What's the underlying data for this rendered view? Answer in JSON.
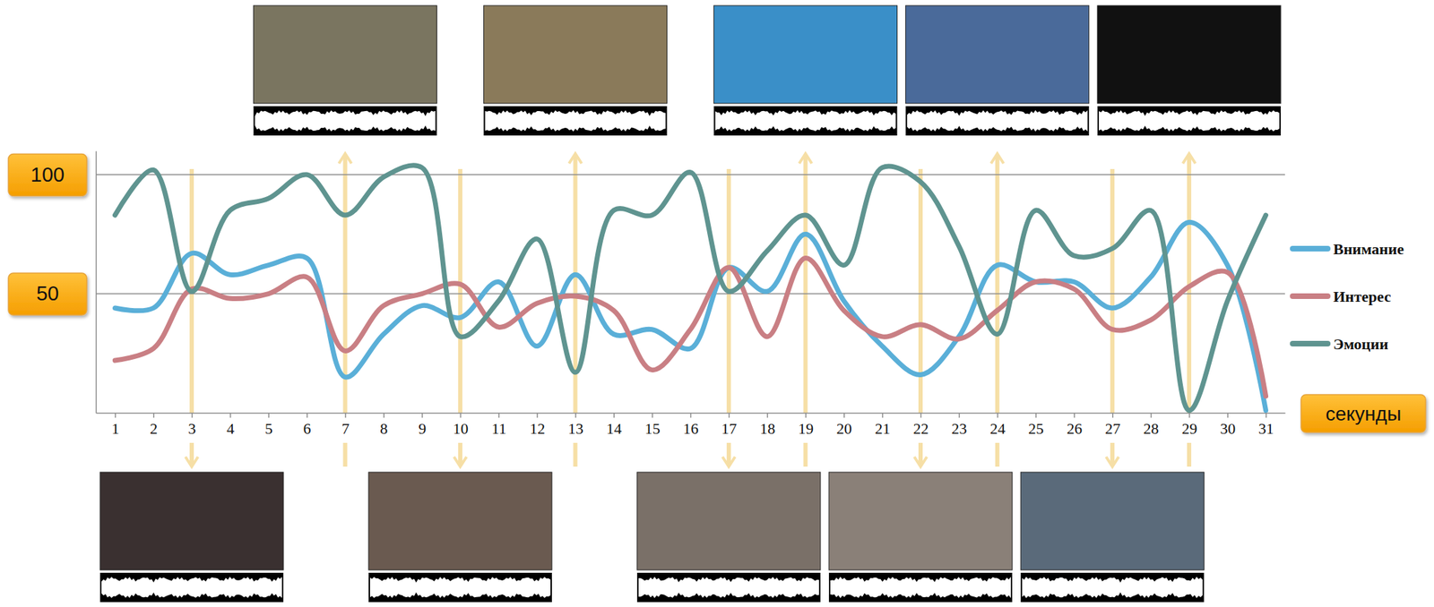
{
  "chart_data": {
    "type": "line",
    "x": [
      1,
      2,
      3,
      4,
      5,
      6,
      7,
      8,
      9,
      10,
      11,
      12,
      13,
      14,
      15,
      16,
      17,
      18,
      19,
      20,
      21,
      22,
      23,
      24,
      25,
      26,
      27,
      28,
      29,
      30,
      31
    ],
    "xlim": [
      0.5,
      31.5
    ],
    "xticks": [
      1,
      2,
      3,
      4,
      5,
      6,
      7,
      8,
      9,
      10,
      11,
      12,
      13,
      14,
      15,
      16,
      17,
      18,
      19,
      20,
      21,
      22,
      23,
      24,
      25,
      26,
      27,
      28,
      29,
      30,
      31
    ],
    "ylim": [
      0,
      110
    ],
    "yticks": [
      50,
      100
    ],
    "x_label": "секунды",
    "grid": true,
    "legend": "right",
    "series": [
      {
        "name": "Внимание",
        "color": "#5aafd8",
        "values": [
          44,
          44,
          67,
          58,
          62,
          65,
          15,
          33,
          45,
          40,
          55,
          28,
          58,
          33,
          35,
          27,
          61,
          51,
          75,
          47,
          28,
          16,
          32,
          62,
          55,
          55,
          44,
          57,
          80,
          62,
          1
        ]
      },
      {
        "name": "Интерес",
        "color": "#c97f84",
        "values": [
          22,
          27,
          52,
          48,
          50,
          57,
          26,
          45,
          50,
          54,
          36,
          46,
          49,
          43,
          18,
          35,
          61,
          32,
          65,
          43,
          32,
          37,
          31,
          43,
          55,
          52,
          35,
          39,
          53,
          59,
          7
        ]
      },
      {
        "name": "Эмоции",
        "color": "#5f9490",
        "values": [
          83,
          102,
          51,
          85,
          90,
          100,
          83,
          99,
          103,
          32,
          47,
          73,
          17,
          85,
          83,
          101,
          51,
          68,
          83,
          62,
          103,
          97,
          70,
          33,
          85,
          66,
          69,
          85,
          1,
          47,
          83
        ]
      }
    ],
    "frames": {
      "top": [
        7,
        13,
        19,
        24,
        29
      ],
      "bottom": [
        3,
        10,
        17,
        22,
        27
      ]
    }
  }
}
